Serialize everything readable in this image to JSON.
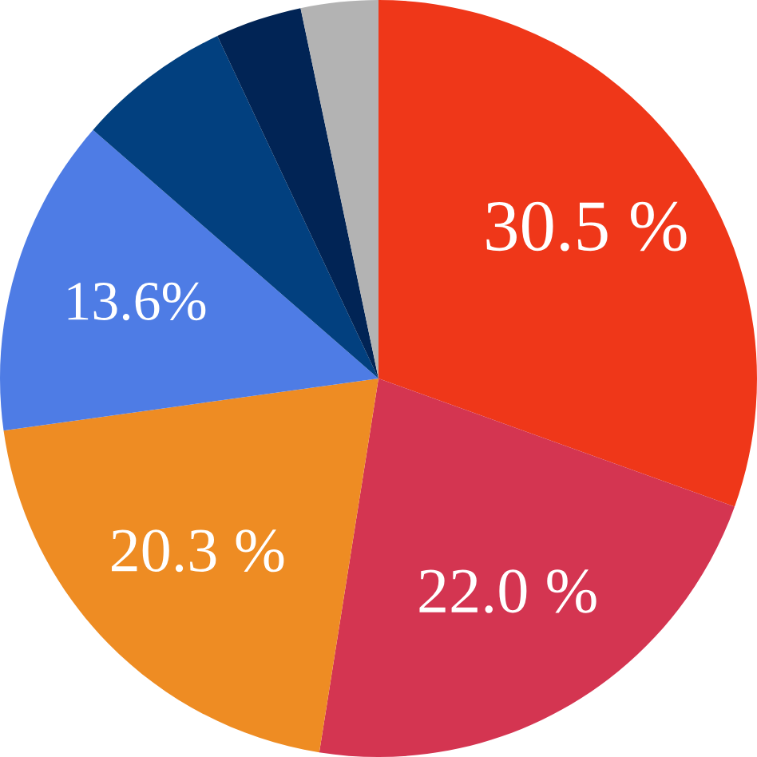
{
  "chart_data": {
    "type": "pie",
    "categories": [
      null,
      null,
      null,
      null,
      null,
      null,
      null
    ],
    "values": [
      30.5,
      22.0,
      20.3,
      13.6,
      6.6,
      3.7,
      3.3
    ],
    "colors": [
      "#ef3719",
      "#d43551",
      "#ee8c23",
      "#4e7ce5",
      "#02407f",
      "#012455",
      "#b3b3b3"
    ],
    "value_labels": [
      "30.5 %",
      "22.0 %",
      "20.3 %",
      "13.6%",
      null,
      null,
      null
    ]
  }
}
